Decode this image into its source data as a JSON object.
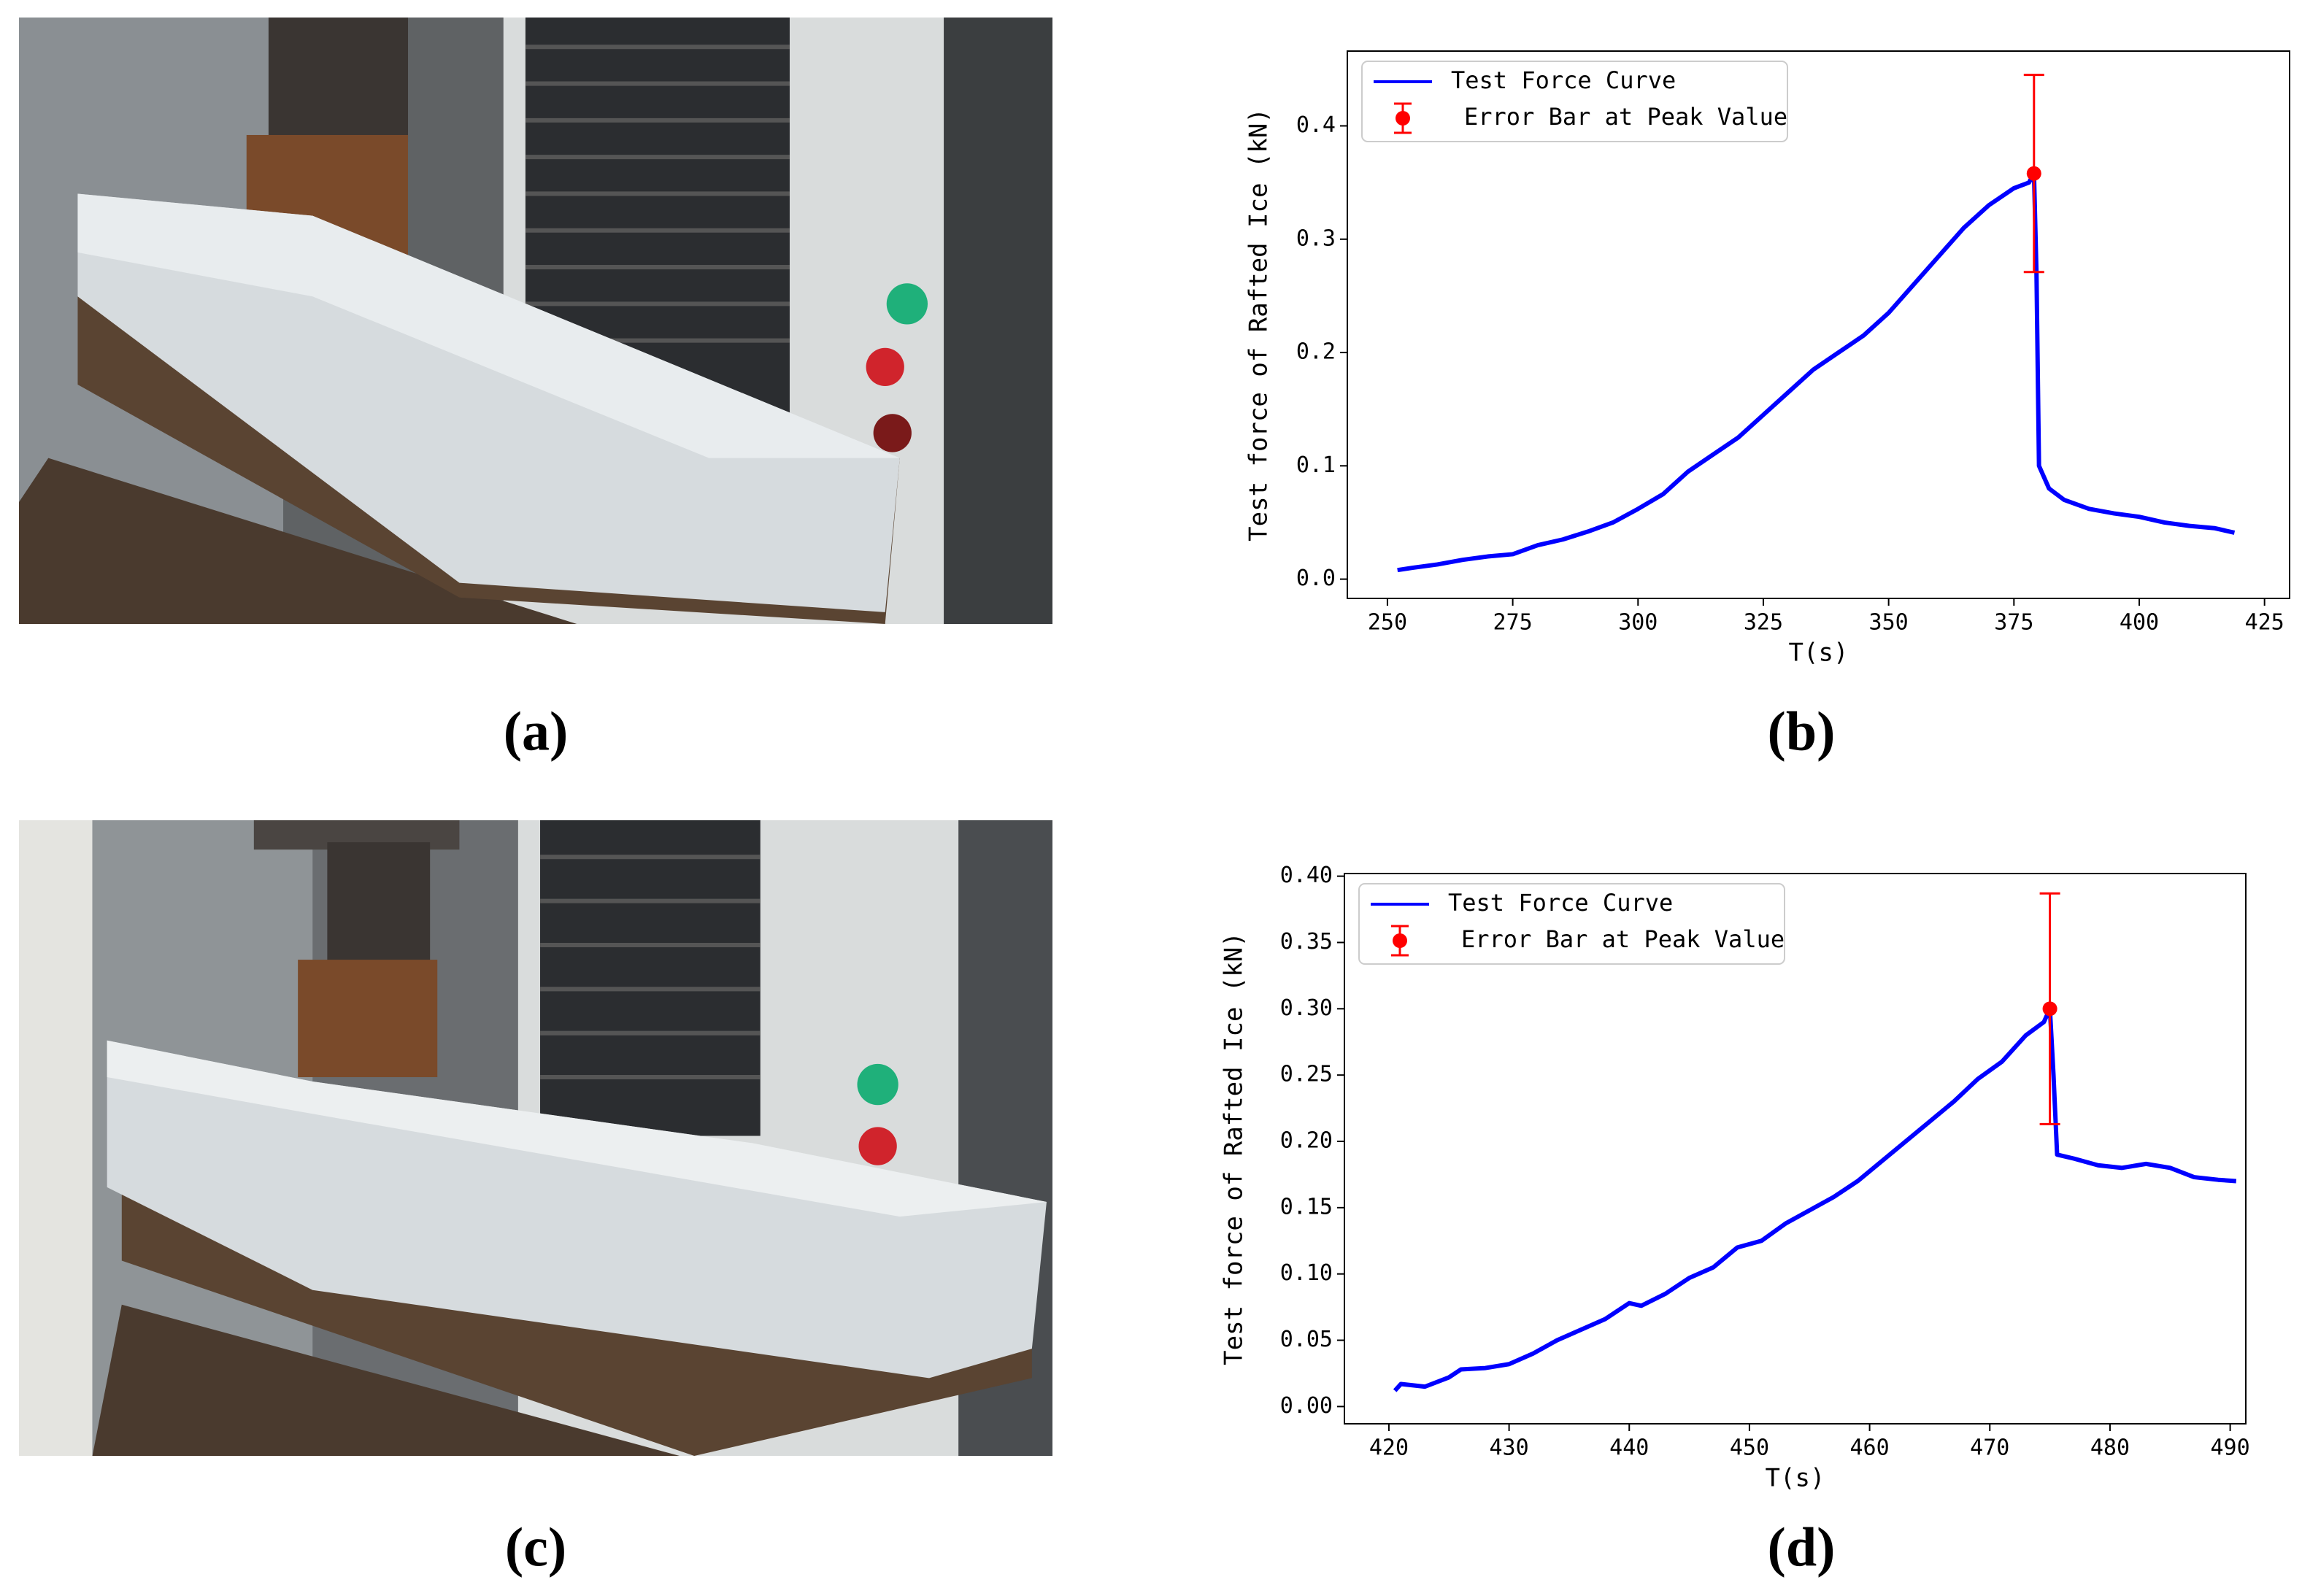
{
  "panel_labels": [
    "(a)",
    "(b)",
    "(c)",
    "(d)"
  ],
  "chart_data": [
    {
      "type": "line",
      "xlabel": "T(s)",
      "ylabel": "Test force of Rafted Ice (kN)",
      "xlim": [
        242,
        430
      ],
      "ylim": [
        -0.017,
        0.466
      ],
      "xticks": [
        250,
        275,
        300,
        325,
        350,
        375,
        400,
        425
      ],
      "yticks": [
        {
          "value": 0,
          "label": "0.0"
        },
        0.1,
        0.2,
        0.3,
        0.4
      ],
      "legend": "upper left",
      "series": [
        {
          "name": "Test Force Curve",
          "color": "#0000ff",
          "x": [
            252,
            255,
            260,
            265,
            270,
            275,
            280,
            285,
            290,
            295,
            300,
            305,
            310,
            315,
            320,
            325,
            330,
            335,
            340,
            345,
            350,
            355,
            360,
            365,
            370,
            375,
            378,
            379,
            379.5,
            380,
            382,
            385,
            390,
            395,
            400,
            405,
            410,
            415,
            419
          ],
          "values": [
            0.008,
            0.01,
            0.013,
            0.017,
            0.02,
            0.022,
            0.03,
            0.035,
            0.042,
            0.05,
            0.062,
            0.075,
            0.095,
            0.11,
            0.125,
            0.145,
            0.165,
            0.185,
            0.2,
            0.215,
            0.235,
            0.26,
            0.285,
            0.31,
            0.33,
            0.345,
            0.35,
            0.358,
            0.27,
            0.1,
            0.08,
            0.07,
            0.062,
            0.058,
            0.055,
            0.05,
            0.047,
            0.045,
            0.041
          ]
        },
        {
          "name": "Error Bar at Peak Value",
          "color": "#ff0000",
          "x": [
            379
          ],
          "values": [
            0.358
          ],
          "errors": [
            0.087
          ]
        }
      ]
    },
    {
      "type": "line",
      "xlabel": "T(s)",
      "ylabel": "Test force of Rafted Ice (kN)",
      "xlim": [
        416.3,
        491.3
      ],
      "ylim": [
        -0.013,
        0.402
      ],
      "xticks": [
        420,
        430,
        440,
        450,
        460,
        470,
        480,
        490
      ],
      "yticks": [
        {
          "value": 0,
          "label": "0.00"
        },
        0.05,
        {
          "value": 0.1,
          "label": "0.10"
        },
        0.15,
        {
          "value": 0.2,
          "label": "0.20"
        },
        0.25,
        {
          "value": 0.3,
          "label": "0.30"
        },
        0.35,
        {
          "value": 0.4,
          "label": "0.40"
        }
      ],
      "legend": "upper left",
      "series": [
        {
          "name": "Test Force Curve",
          "color": "#0000ff",
          "x": [
            420.5,
            421,
            423,
            425,
            426,
            428,
            430,
            432,
            434,
            436,
            438,
            440,
            441,
            443,
            445,
            447,
            449,
            451,
            453,
            455,
            457,
            459,
            461,
            463,
            465,
            467,
            469,
            471,
            473,
            474.5,
            475,
            475.3,
            475.6,
            477,
            479,
            481,
            483,
            485,
            487,
            489,
            490.5
          ],
          "values": [
            0.012,
            0.017,
            0.015,
            0.022,
            0.028,
            0.029,
            0.032,
            0.04,
            0.05,
            0.058,
            0.066,
            0.078,
            0.076,
            0.085,
            0.097,
            0.105,
            0.12,
            0.125,
            0.138,
            0.148,
            0.158,
            0.17,
            0.185,
            0.2,
            0.215,
            0.23,
            0.247,
            0.26,
            0.28,
            0.29,
            0.3,
            0.25,
            0.19,
            0.187,
            0.182,
            0.18,
            0.183,
            0.18,
            0.173,
            0.171,
            0.17
          ]
        },
        {
          "name": "Error Bar at Peak Value",
          "color": "#ff0000",
          "x": [
            475
          ],
          "values": [
            0.3
          ],
          "errors": [
            0.087
          ]
        }
      ]
    }
  ]
}
